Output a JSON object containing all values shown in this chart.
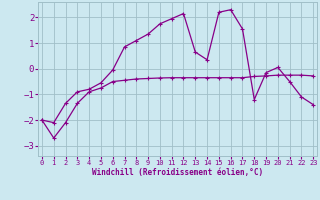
{
  "xlabel": "Windchill (Refroidissement éolien,°C)",
  "background_color": "#cce8f0",
  "grid_color": "#a0bfc8",
  "line_color": "#880088",
  "x_ticks": [
    0,
    1,
    2,
    3,
    4,
    5,
    6,
    7,
    8,
    9,
    10,
    11,
    12,
    13,
    14,
    15,
    16,
    17,
    18,
    19,
    20,
    21,
    22,
    23
  ],
  "y_ticks": [
    -3,
    -2,
    -1,
    0,
    1,
    2
  ],
  "ylim": [
    -3.4,
    2.6
  ],
  "xlim": [
    -0.3,
    23.3
  ],
  "series1_x": [
    0,
    1,
    2,
    3,
    4,
    5,
    6,
    7,
    8,
    9,
    10,
    11,
    12,
    13,
    14,
    15,
    16,
    17,
    18,
    19,
    20,
    21,
    22,
    23
  ],
  "series1_y": [
    -2.0,
    -2.7,
    -2.1,
    -1.35,
    -0.9,
    -0.75,
    -0.5,
    -0.45,
    -0.4,
    -0.38,
    -0.36,
    -0.35,
    -0.35,
    -0.35,
    -0.35,
    -0.35,
    -0.35,
    -0.35,
    -0.3,
    -0.28,
    -0.25,
    -0.25,
    -0.25,
    -0.28
  ],
  "series2_x": [
    0,
    1,
    2,
    3,
    4,
    5,
    6,
    7,
    8,
    9,
    10,
    11,
    12,
    13,
    14,
    15,
    16,
    17,
    18,
    19,
    20,
    21,
    22,
    23
  ],
  "series2_y": [
    -2.0,
    -2.1,
    -1.35,
    -0.9,
    -0.8,
    -0.55,
    -0.05,
    0.85,
    1.1,
    1.35,
    1.75,
    1.95,
    2.15,
    0.65,
    0.35,
    2.2,
    2.3,
    1.55,
    -1.2,
    -0.15,
    0.05,
    -0.5,
    -1.1,
    -1.4
  ]
}
